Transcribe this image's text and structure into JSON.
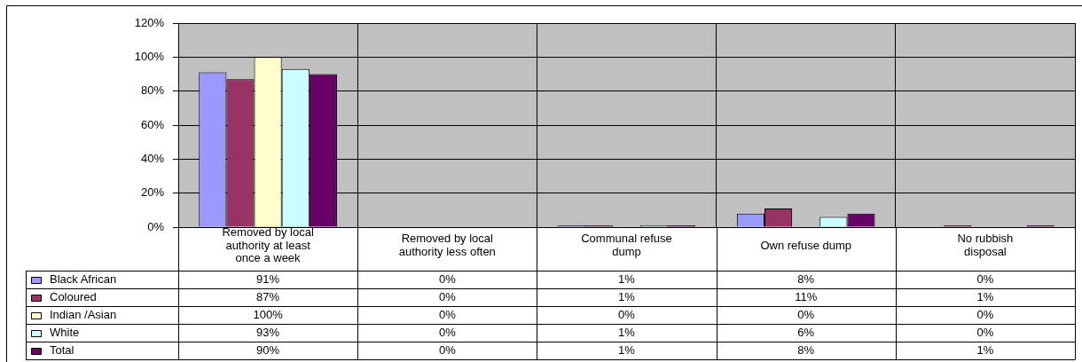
{
  "chart_data": {
    "type": "bar",
    "categories": [
      "Removed by local authority at least once a week",
      "Removed by local authority less often",
      "Communal refuse dump",
      "Own refuse dump",
      "No rubbish disposal"
    ],
    "series": [
      {
        "name": "Black African",
        "color": "#9999ff",
        "values": [
          91,
          0,
          1,
          8,
          0
        ],
        "value_labels": [
          "91%",
          "0%",
          "1%",
          "8%",
          "0%"
        ]
      },
      {
        "name": "Coloured",
        "color": "#993366",
        "values": [
          87,
          0,
          1,
          11,
          1
        ],
        "value_labels": [
          "87%",
          "0%",
          "1%",
          "11%",
          "1%"
        ]
      },
      {
        "name": "Indian /Asian",
        "color": "#ffffcc",
        "values": [
          100,
          0,
          0,
          0,
          0
        ],
        "value_labels": [
          "100%",
          "0%",
          "0%",
          "0%",
          "0%"
        ]
      },
      {
        "name": "White",
        "color": "#ccffff",
        "values": [
          93,
          0,
          1,
          6,
          0
        ],
        "value_labels": [
          "93%",
          "0%",
          "1%",
          "6%",
          "0%"
        ]
      },
      {
        "name": "Total",
        "color": "#660066",
        "values": [
          90,
          0,
          1,
          8,
          1
        ],
        "value_labels": [
          "90%",
          "0%",
          "1%",
          "8%",
          "1%"
        ]
      }
    ],
    "ylim": [
      0,
      120
    ],
    "yticks": [
      {
        "value": 0,
        "label": "0%"
      },
      {
        "value": 20,
        "label": "20%"
      },
      {
        "value": 40,
        "label": "40%"
      },
      {
        "value": 60,
        "label": "60%"
      },
      {
        "value": 80,
        "label": "80%"
      },
      {
        "value": 100,
        "label": "100%"
      },
      {
        "value": 120,
        "label": "120%"
      }
    ],
    "grid": true,
    "legend": "bottom"
  }
}
